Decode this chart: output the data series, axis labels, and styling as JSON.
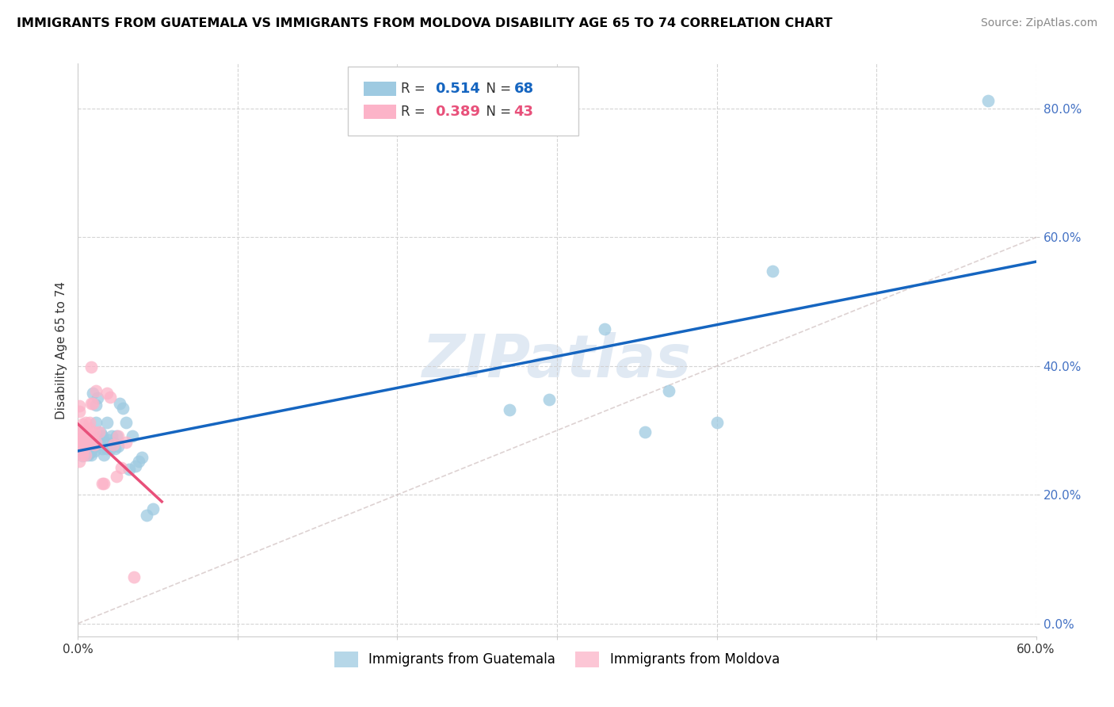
{
  "title": "IMMIGRANTS FROM GUATEMALA VS IMMIGRANTS FROM MOLDOVA DISABILITY AGE 65 TO 74 CORRELATION CHART",
  "source": "Source: ZipAtlas.com",
  "ylabel": "Disability Age 65 to 74",
  "xlim": [
    0.0,
    0.6
  ],
  "ylim": [
    -0.02,
    0.87
  ],
  "xticks": [
    0.0,
    0.1,
    0.2,
    0.3,
    0.4,
    0.5,
    0.6
  ],
  "yticks": [
    0.0,
    0.2,
    0.4,
    0.6,
    0.8
  ],
  "r_guatemala": 0.514,
  "n_guatemala": 68,
  "r_moldova": 0.389,
  "n_moldova": 43,
  "color_guatemala": "#9ecae1",
  "color_moldova": "#fcb3c8",
  "line_color_guatemala": "#1565c0",
  "line_color_moldova": "#e8507a",
  "watermark": "ZIPatlas",
  "guatemala_x": [
    0.001,
    0.001,
    0.002,
    0.002,
    0.002,
    0.003,
    0.003,
    0.003,
    0.003,
    0.004,
    0.004,
    0.004,
    0.005,
    0.005,
    0.005,
    0.005,
    0.006,
    0.006,
    0.006,
    0.007,
    0.007,
    0.007,
    0.008,
    0.008,
    0.008,
    0.009,
    0.009,
    0.01,
    0.01,
    0.01,
    0.011,
    0.011,
    0.012,
    0.012,
    0.013,
    0.013,
    0.014,
    0.015,
    0.015,
    0.016,
    0.017,
    0.018,
    0.018,
    0.019,
    0.02,
    0.021,
    0.022,
    0.023,
    0.024,
    0.025,
    0.026,
    0.028,
    0.03,
    0.032,
    0.034,
    0.036,
    0.038,
    0.04,
    0.043,
    0.047,
    0.27,
    0.295,
    0.33,
    0.355,
    0.37,
    0.4,
    0.435,
    0.57
  ],
  "guatemala_y": [
    0.27,
    0.265,
    0.28,
    0.275,
    0.268,
    0.272,
    0.265,
    0.278,
    0.26,
    0.275,
    0.268,
    0.282,
    0.272,
    0.265,
    0.27,
    0.278,
    0.262,
    0.275,
    0.268,
    0.272,
    0.265,
    0.278,
    0.268,
    0.275,
    0.262,
    0.358,
    0.278,
    0.282,
    0.275,
    0.268,
    0.34,
    0.312,
    0.288,
    0.35,
    0.278,
    0.282,
    0.296,
    0.272,
    0.292,
    0.262,
    0.282,
    0.272,
    0.312,
    0.285,
    0.272,
    0.292,
    0.282,
    0.272,
    0.292,
    0.275,
    0.342,
    0.335,
    0.312,
    0.24,
    0.292,
    0.245,
    0.252,
    0.258,
    0.168,
    0.178,
    0.332,
    0.348,
    0.458,
    0.298,
    0.362,
    0.312,
    0.548,
    0.812
  ],
  "moldova_x": [
    0.001,
    0.001,
    0.001,
    0.001,
    0.001,
    0.002,
    0.002,
    0.002,
    0.002,
    0.003,
    0.003,
    0.003,
    0.003,
    0.004,
    0.004,
    0.004,
    0.005,
    0.005,
    0.005,
    0.006,
    0.006,
    0.006,
    0.007,
    0.007,
    0.008,
    0.008,
    0.009,
    0.009,
    0.01,
    0.01,
    0.011,
    0.011,
    0.013,
    0.015,
    0.016,
    0.018,
    0.02,
    0.022,
    0.024,
    0.025,
    0.027,
    0.03,
    0.035
  ],
  "moldova_y": [
    0.338,
    0.33,
    0.285,
    0.278,
    0.252,
    0.3,
    0.282,
    0.295,
    0.285,
    0.278,
    0.262,
    0.31,
    0.268,
    0.298,
    0.29,
    0.282,
    0.262,
    0.312,
    0.282,
    0.288,
    0.298,
    0.278,
    0.312,
    0.302,
    0.342,
    0.398,
    0.342,
    0.288,
    0.278,
    0.298,
    0.282,
    0.362,
    0.298,
    0.218,
    0.218,
    0.358,
    0.352,
    0.278,
    0.228,
    0.292,
    0.242,
    0.282,
    0.072
  ]
}
